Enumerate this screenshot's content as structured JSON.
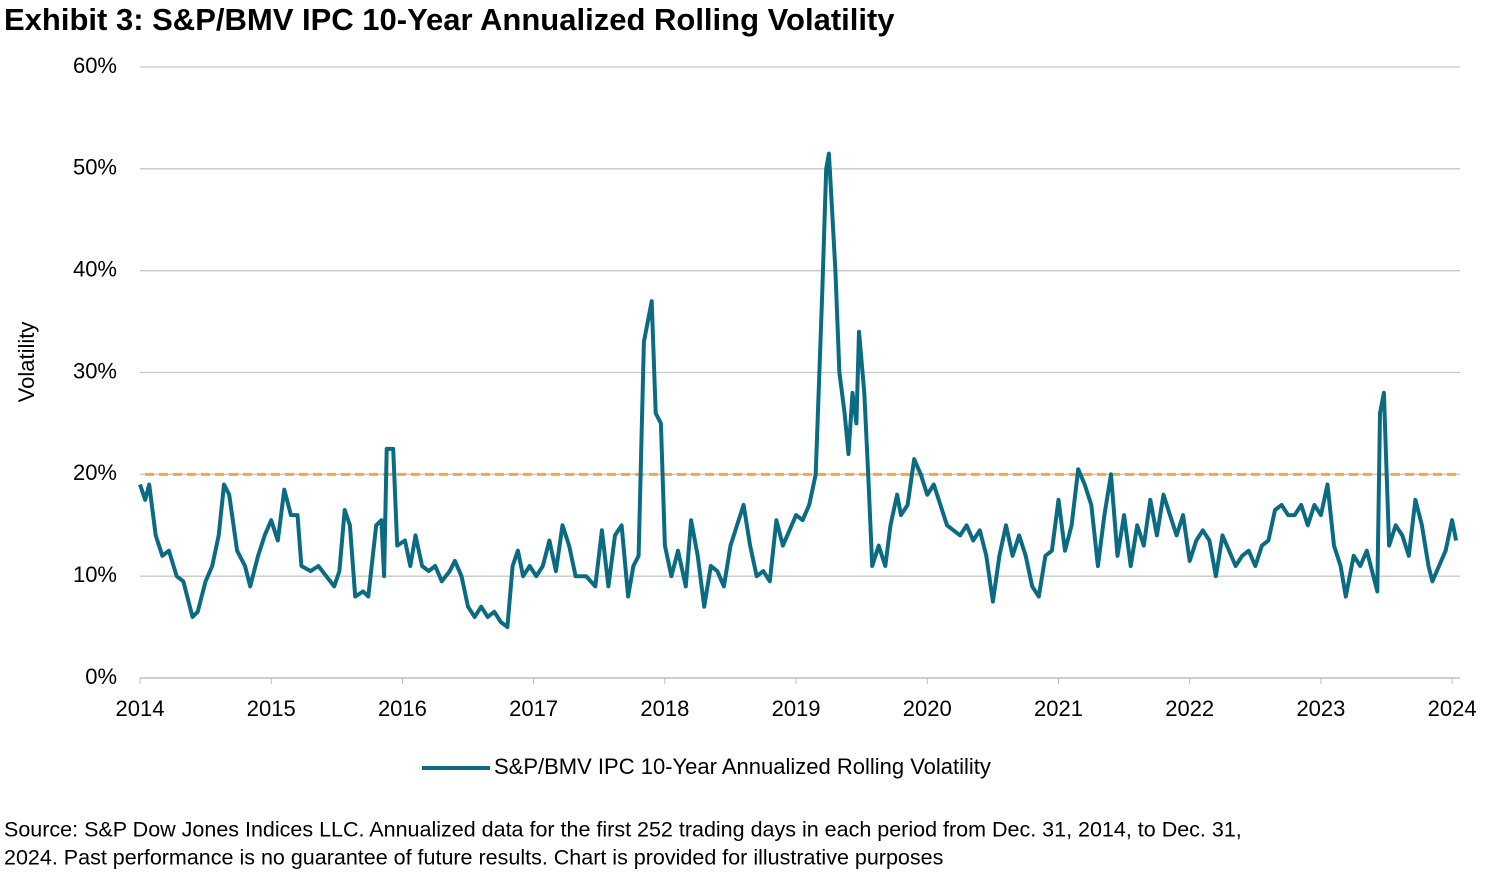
{
  "chart_data": {
    "type": "line",
    "title": "Exhibit 3: S&P/BMV IPC 10-Year Annualized Rolling Volatility",
    "y_label": "Volatility",
    "source": "Source: S&P Dow Jones Indices LLC. Annualized data for the first 252 trading days in each period from Dec. 31, 2014, to Dec. 31,",
    "source_line2": "2024. Past performance is no guarantee of future results. Chart is provided for illustrative purposes",
    "xlim": [
      2014,
      2024.06
    ],
    "xticks": [
      2014,
      2015,
      2016,
      2017,
      2018,
      2019,
      2020,
      2021,
      2022,
      2023,
      2024
    ],
    "ylim": [
      0,
      60
    ],
    "yticks": [
      {
        "value": 0,
        "label": "0%"
      },
      {
        "value": 10,
        "label": "10%"
      },
      {
        "value": 20,
        "label": "20%"
      },
      {
        "value": 30,
        "label": "30%"
      },
      {
        "value": 40,
        "label": "40%"
      },
      {
        "value": 50,
        "label": "50%"
      },
      {
        "value": 60,
        "label": "60%"
      }
    ],
    "grid": true,
    "reference_line": {
      "value": 20,
      "color": "#f0a848"
    },
    "x": [
      2014.0,
      2014.04,
      2014.07,
      2014.12,
      2014.17,
      2014.22,
      2014.28,
      2014.33,
      2014.4,
      2014.44,
      2014.5,
      2014.55,
      2014.6,
      2014.64,
      2014.68,
      2014.74,
      2014.8,
      2014.84,
      2014.9,
      2014.95,
      2015.0,
      2015.05,
      2015.1,
      2015.15,
      2015.2,
      2015.23,
      2015.3,
      2015.36,
      2015.42,
      2015.48,
      2015.52,
      2015.56,
      2015.6,
      2015.64,
      2015.7,
      2015.74,
      2015.8,
      2015.84,
      2015.86,
      2015.88,
      2015.93,
      2015.96,
      2016.02,
      2016.06,
      2016.1,
      2016.15,
      2016.2,
      2016.25,
      2016.3,
      2016.36,
      2016.4,
      2016.45,
      2016.5,
      2016.55,
      2016.6,
      2016.65,
      2016.7,
      2016.75,
      2016.8,
      2016.84,
      2016.88,
      2016.92,
      2016.97,
      2017.02,
      2017.07,
      2017.12,
      2017.17,
      2017.22,
      2017.27,
      2017.32,
      2017.4,
      2017.47,
      2017.52,
      2017.57,
      2017.62,
      2017.67,
      2017.72,
      2017.76,
      2017.8,
      2017.84,
      2017.87,
      2017.9,
      2017.93,
      2017.97,
      2018.0,
      2018.05,
      2018.1,
      2018.16,
      2018.2,
      2018.25,
      2018.3,
      2018.35,
      2018.4,
      2018.45,
      2018.5,
      2018.55,
      2018.6,
      2018.65,
      2018.7,
      2018.75,
      2018.8,
      2018.85,
      2018.9,
      2018.95,
      2019.0,
      2019.05,
      2019.1,
      2019.15,
      2019.2,
      2019.23,
      2019.25,
      2019.27,
      2019.3,
      2019.33,
      2019.37,
      2019.4,
      2019.43,
      2019.46,
      2019.48,
      2019.52,
      2019.55,
      2019.58,
      2019.63,
      2019.68,
      2019.72,
      2019.77,
      2019.8,
      2019.85,
      2019.9,
      2019.95,
      2020.0,
      2020.05,
      2020.1,
      2020.15,
      2020.2,
      2020.25,
      2020.3,
      2020.35,
      2020.4,
      2020.45,
      2020.5,
      2020.55,
      2020.6,
      2020.65,
      2020.7,
      2020.75,
      2020.8,
      2020.85,
      2020.9,
      2020.95,
      2021.0,
      2021.05,
      2021.1,
      2021.15,
      2021.2,
      2021.25,
      2021.3,
      2021.35,
      2021.4,
      2021.45,
      2021.5,
      2021.55,
      2021.6,
      2021.65,
      2021.7,
      2021.75,
      2021.8,
      2021.85,
      2021.9,
      2021.95,
      2022.0,
      2022.05,
      2022.1,
      2022.15,
      2022.2,
      2022.25,
      2022.3,
      2022.35,
      2022.4,
      2022.45,
      2022.5,
      2022.55,
      2022.6,
      2022.65,
      2022.7,
      2022.75,
      2022.8,
      2022.85,
      2022.9,
      2022.95,
      2023.0,
      2023.05,
      2023.1,
      2023.15,
      2023.19,
      2023.25,
      2023.3,
      2023.35,
      2023.4,
      2023.43,
      2023.45,
      2023.48,
      2023.52,
      2023.57,
      2023.62,
      2023.67,
      2023.72,
      2023.77,
      2023.82,
      2023.85,
      2023.9,
      2023.95,
      2024.0,
      2024.03
    ],
    "series": [
      {
        "name": "S&P/BMV IPC 10-Year Annualized Rolling Volatility",
        "color": "#0b6b83",
        "values": [
          19,
          17.5,
          19,
          14,
          12,
          12.5,
          10,
          9.5,
          6,
          6.5,
          9.5,
          11,
          14,
          19,
          18,
          12.5,
          11,
          9,
          12,
          14,
          15.5,
          13.5,
          18.5,
          16,
          16,
          11,
          10.5,
          11,
          10,
          9,
          10.5,
          16.5,
          15,
          8,
          8.5,
          8,
          15,
          15.5,
          10,
          22.5,
          22.5,
          13,
          13.5,
          11,
          14,
          11,
          10.5,
          11,
          9.5,
          10.5,
          11.5,
          10,
          7,
          6,
          7,
          6,
          6.5,
          5.5,
          5,
          11,
          12.5,
          10,
          11,
          10,
          11,
          13.5,
          10.5,
          15,
          13,
          10,
          10,
          9,
          14.5,
          9,
          14,
          15,
          8,
          11,
          12,
          33,
          35,
          37,
          26,
          25,
          13,
          10,
          12.5,
          9,
          15.5,
          12,
          7,
          11,
          10.5,
          9,
          13,
          15,
          17,
          13,
          10,
          10.5,
          9.5,
          15.5,
          13,
          14.5,
          16,
          15.5,
          17,
          20,
          38,
          50,
          51.5,
          47,
          40,
          30,
          26,
          22,
          28,
          25,
          34,
          28,
          20,
          11,
          13,
          11,
          15,
          18,
          16,
          17,
          21.5,
          20,
          18,
          19,
          17,
          15,
          14.5,
          14,
          15,
          13.5,
          14.5,
          12,
          7.5,
          12,
          15,
          12,
          14,
          12,
          9,
          8,
          12,
          12.5,
          17.5,
          12.5,
          15,
          20.5,
          19,
          17,
          11,
          16,
          20,
          12,
          16,
          11,
          15,
          13,
          17.5,
          14,
          18,
          16,
          14,
          16,
          11.5,
          13.5,
          14.5,
          13.5,
          10,
          14,
          12.5,
          11,
          12,
          12.5,
          11,
          13,
          13.5,
          16.5,
          17,
          16,
          16,
          17,
          15,
          17,
          16,
          19,
          13,
          11,
          8,
          12,
          11,
          12.5,
          10,
          8.5,
          26,
          28,
          13,
          15,
          14,
          12,
          17.5,
          15,
          11,
          9.5,
          11,
          12.5,
          15.5,
          13.5
        ]
      }
    ]
  }
}
